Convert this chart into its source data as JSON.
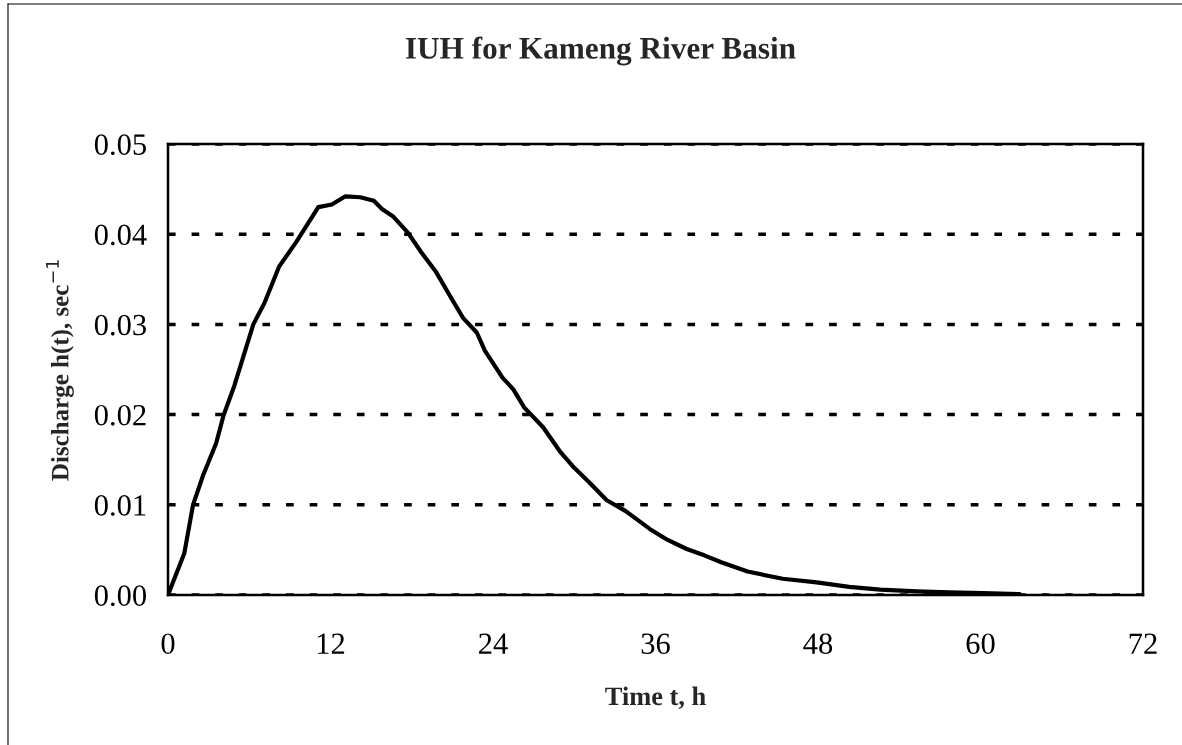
{
  "chart_data": {
    "type": "line",
    "title": "IUH for Kameng River Basin",
    "xlabel": "Time t, h",
    "ylabel": "Discharge h(t), sec$^{−1}$",
    "series": [
      {
        "color": "#000000",
        "line_style": "solid",
        "x": [
          0,
          1.2,
          1.85,
          2.6,
          3.55,
          4.1,
          4.9,
          5.7,
          6.3,
          7.1,
          8.2,
          9.5,
          11.1,
          12.1,
          13.1,
          14.2,
          15.2,
          15.8,
          16.6,
          17.7,
          18.7,
          19.8,
          21.0,
          21.8,
          22.8,
          23.4,
          24.7,
          25.5,
          26.3,
          27.7,
          29.0,
          30.0,
          31.1,
          32.4,
          33.8,
          35.6,
          36.9,
          38.3,
          39.6,
          40.9,
          42.8,
          45.4,
          47.9,
          50.3,
          52.6,
          55.3,
          57.7,
          60.2,
          62.9
        ],
        "values": [
          0,
          0.0046,
          0.01,
          0.0133,
          0.0168,
          0.0199,
          0.0232,
          0.0271,
          0.03,
          0.0323,
          0.0364,
          0.0392,
          0.043,
          0.0433,
          0.0442,
          0.0441,
          0.0437,
          0.0428,
          0.042,
          0.0402,
          0.038,
          0.0358,
          0.0327,
          0.0307,
          0.0291,
          0.0271,
          0.0241,
          0.0228,
          0.0208,
          0.0186,
          0.0158,
          0.0141,
          0.0125,
          0.0105,
          0.0093,
          0.0073,
          0.0061,
          0.0051,
          0.0044,
          0.0036,
          0.0026,
          0.0018,
          0.0014,
          0.0009,
          0.0006,
          0.0004,
          0.0003,
          0.0002,
          0.0001
        ]
      }
    ],
    "xlim": [
      0,
      72
    ],
    "xticks": [
      0,
      12,
      24,
      36,
      48,
      60,
      72
    ],
    "ylim": [
      0,
      0.05
    ],
    "yticks": [
      {
        "value": 0,
        "label": "0.00"
      },
      {
        "value": 0.01,
        "label": "0.01"
      },
      {
        "value": 0.02,
        "label": "0.02"
      },
      {
        "value": 0.03,
        "label": "0.03"
      },
      {
        "value": 0.04,
        "label": "0.04"
      },
      {
        "value": 0.05,
        "label": "0.05"
      }
    ],
    "grid": "y"
  }
}
